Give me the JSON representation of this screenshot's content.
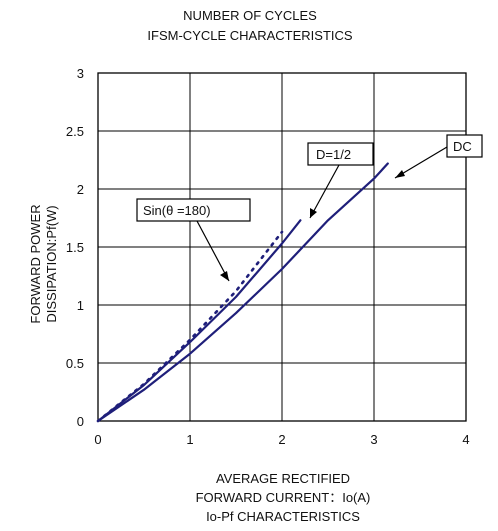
{
  "chart_data": {
    "type": "line",
    "title_lines": [
      "NUMBER OF CYCLES",
      "IFSM-CYCLE CHARACTERISTICS"
    ],
    "ylabel_lines": [
      "FORWARD POWER",
      "DISSIPATION:Pf(W)"
    ],
    "xlabel_lines": [
      "AVERAGE RECTIFIED",
      "FORWARD CURRENT：Io(A)",
      "Io-Pf CHARACTERISTICS"
    ],
    "x_ticks": [
      "0",
      "1",
      "2",
      "3",
      "4"
    ],
    "y_ticks": [
      "0",
      "0.5",
      "1",
      "1.5",
      "2",
      "2.5",
      "3"
    ],
    "xlim": [
      0,
      4
    ],
    "ylim": [
      0,
      3
    ],
    "grid": true,
    "series": [
      {
        "name": "DC",
        "line_style": "solid",
        "color": "#1f1f7a",
        "x": [
          0,
          0.5,
          1.0,
          1.5,
          2.0,
          2.5,
          3.0,
          3.15
        ],
        "y": [
          0,
          0.27,
          0.58,
          0.93,
          1.31,
          1.73,
          2.09,
          2.22
        ]
      },
      {
        "name": "D=1/2",
        "line_style": "solid",
        "color": "#1f1f7a",
        "x": [
          0,
          0.5,
          1.0,
          1.5,
          2.0,
          2.2
        ],
        "y": [
          0,
          0.31,
          0.68,
          1.07,
          1.53,
          1.73
        ]
      },
      {
        "name": "Sin(θ =180)",
        "line_style": "dotted",
        "color": "#1f1f7a",
        "x": [
          0,
          0.5,
          1.0,
          1.5,
          2.0
        ],
        "y": [
          0,
          0.32,
          0.7,
          1.12,
          1.63
        ]
      }
    ],
    "annotations": [
      {
        "text": "DC",
        "target_series": "DC"
      },
      {
        "text": "D=1/2",
        "target_series": "D=1/2"
      },
      {
        "text": "Sin(θ =180)",
        "target_series": "Sin(θ =180)"
      }
    ]
  }
}
